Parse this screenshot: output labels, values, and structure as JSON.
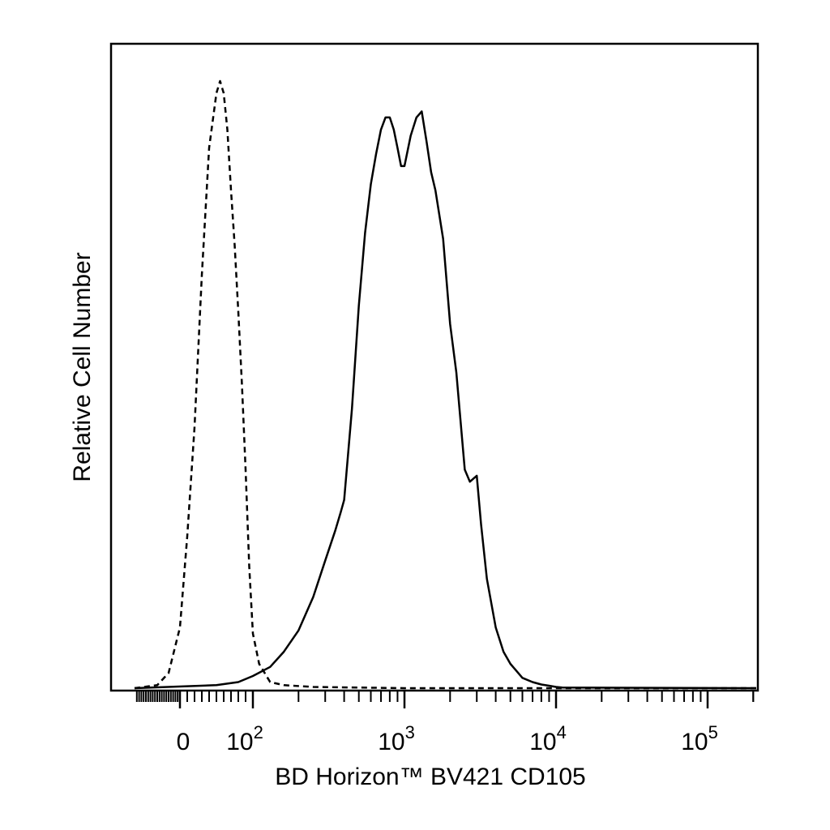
{
  "chart_data": {
    "type": "line",
    "title": "",
    "xlabel": "BD Horizon™ BV421 CD105",
    "ylabel": "Relative Cell Number",
    "x_scale": "biexponential",
    "xlim": [
      -200,
      250000
    ],
    "ylim": [
      0,
      100
    ],
    "grid": false,
    "legend": "none",
    "x_ticks": [
      {
        "value": 0,
        "base": "0",
        "exp": ""
      },
      {
        "value": 100,
        "base": "10",
        "exp": "2"
      },
      {
        "value": 1000,
        "base": "10",
        "exp": "3"
      },
      {
        "value": 10000,
        "base": "10",
        "exp": "4"
      },
      {
        "value": 100000,
        "base": "10",
        "exp": "5"
      }
    ],
    "series": [
      {
        "style": "dashed",
        "color": "#000000",
        "x": [
          -200,
          -100,
          -50,
          0,
          10,
          20,
          30,
          40,
          50,
          55,
          60,
          65,
          70,
          75,
          80,
          85,
          90,
          95,
          100,
          110,
          130,
          160,
          250,
          1000,
          10000,
          250000
        ],
        "y": [
          0,
          0.5,
          2.5,
          10,
          25,
          43,
          68,
          89,
          98,
          100,
          98,
          92,
          82,
          73,
          62,
          50,
          36,
          20,
          9,
          4,
          1,
          0.5,
          0.2,
          0,
          0,
          0
        ]
      },
      {
        "style": "solid",
        "color": "#000000",
        "x": [
          -200,
          50,
          80,
          100,
          130,
          160,
          200,
          250,
          300,
          350,
          380,
          400,
          450,
          500,
          550,
          600,
          650,
          700,
          750,
          800,
          850,
          900,
          950,
          1000,
          1100,
          1200,
          1300,
          1400,
          1500,
          1600,
          1800,
          2000,
          2200,
          2500,
          2700,
          3000,
          3200,
          3500,
          4000,
          4500,
          5000,
          6000,
          7000,
          8000,
          9000,
          10000,
          11000,
          250000
        ],
        "y": [
          0,
          0.5,
          1,
          2,
          3.5,
          6,
          9.5,
          15,
          21,
          26,
          29,
          31,
          46,
          63,
          75,
          83,
          88,
          92,
          94,
          94,
          92,
          89,
          86,
          86,
          91,
          94,
          95,
          90,
          85,
          82,
          74,
          60,
          52,
          36,
          34,
          35,
          27,
          18,
          10,
          6,
          4,
          1.7,
          1,
          0.6,
          0.4,
          0.2,
          0.1,
          0
        ]
      }
    ]
  }
}
